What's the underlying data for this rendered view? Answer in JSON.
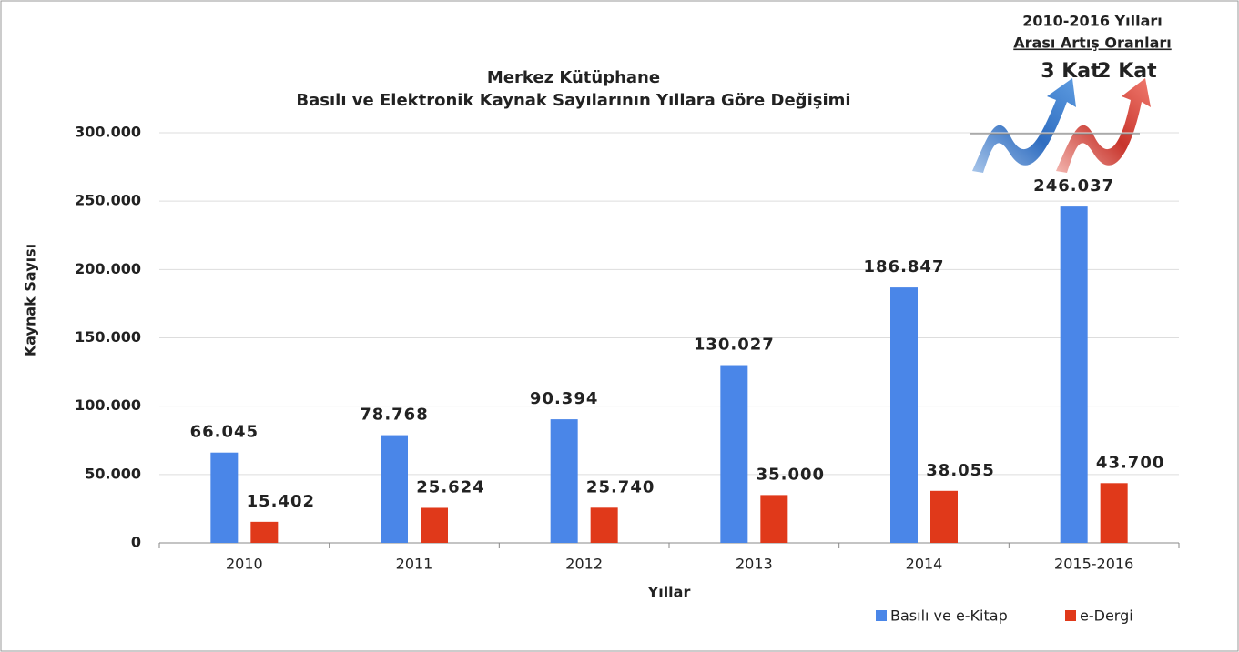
{
  "chart_data": {
    "type": "bar",
    "title": "Merkez Kütüphane",
    "subtitle": "Basılı ve Elektronik Kaynak Sayılarının Yıllara Göre Değişimi",
    "y_label": "Kaynak Sayısı",
    "x_label": "Yıllar",
    "annotations": [
      "2010-2016 Yılları",
      "Arası Artış Oranları",
      "3 Kat",
      "2 Kat"
    ],
    "categories": [
      "2010",
      "2011",
      "2012",
      "2013",
      "2014",
      "2015-2016"
    ],
    "series": [
      {
        "name": "Basılı ve e-Kitap",
        "color": "#4a86e8",
        "values": [
          66045,
          78768,
          90394,
          130027,
          186847,
          246037
        ],
        "value_labels": [
          "66.045",
          "78.768",
          "90.394",
          "130.027",
          "186.847",
          "246.037"
        ]
      },
      {
        "name": "e-Dergi",
        "color": "#e0391a",
        "values": [
          15402,
          25624,
          25740,
          35000,
          38055,
          43700
        ],
        "value_labels": [
          "15.402",
          "25.624",
          "25.740",
          "35.000",
          "38.055",
          "43.700"
        ]
      }
    ],
    "ylim": [
      0,
      300000
    ],
    "yticks": [
      0,
      {
        "value": 50000,
        "label": "50.000"
      },
      {
        "value": 100000,
        "label": "100.000"
      },
      {
        "value": 150000,
        "label": "150.000"
      },
      {
        "value": 200000,
        "label": "200.000"
      },
      {
        "value": 250000,
        "label": "250.000"
      },
      {
        "value": 300000,
        "label": "300.000"
      }
    ],
    "grid": true,
    "legend": "bottom-right"
  }
}
